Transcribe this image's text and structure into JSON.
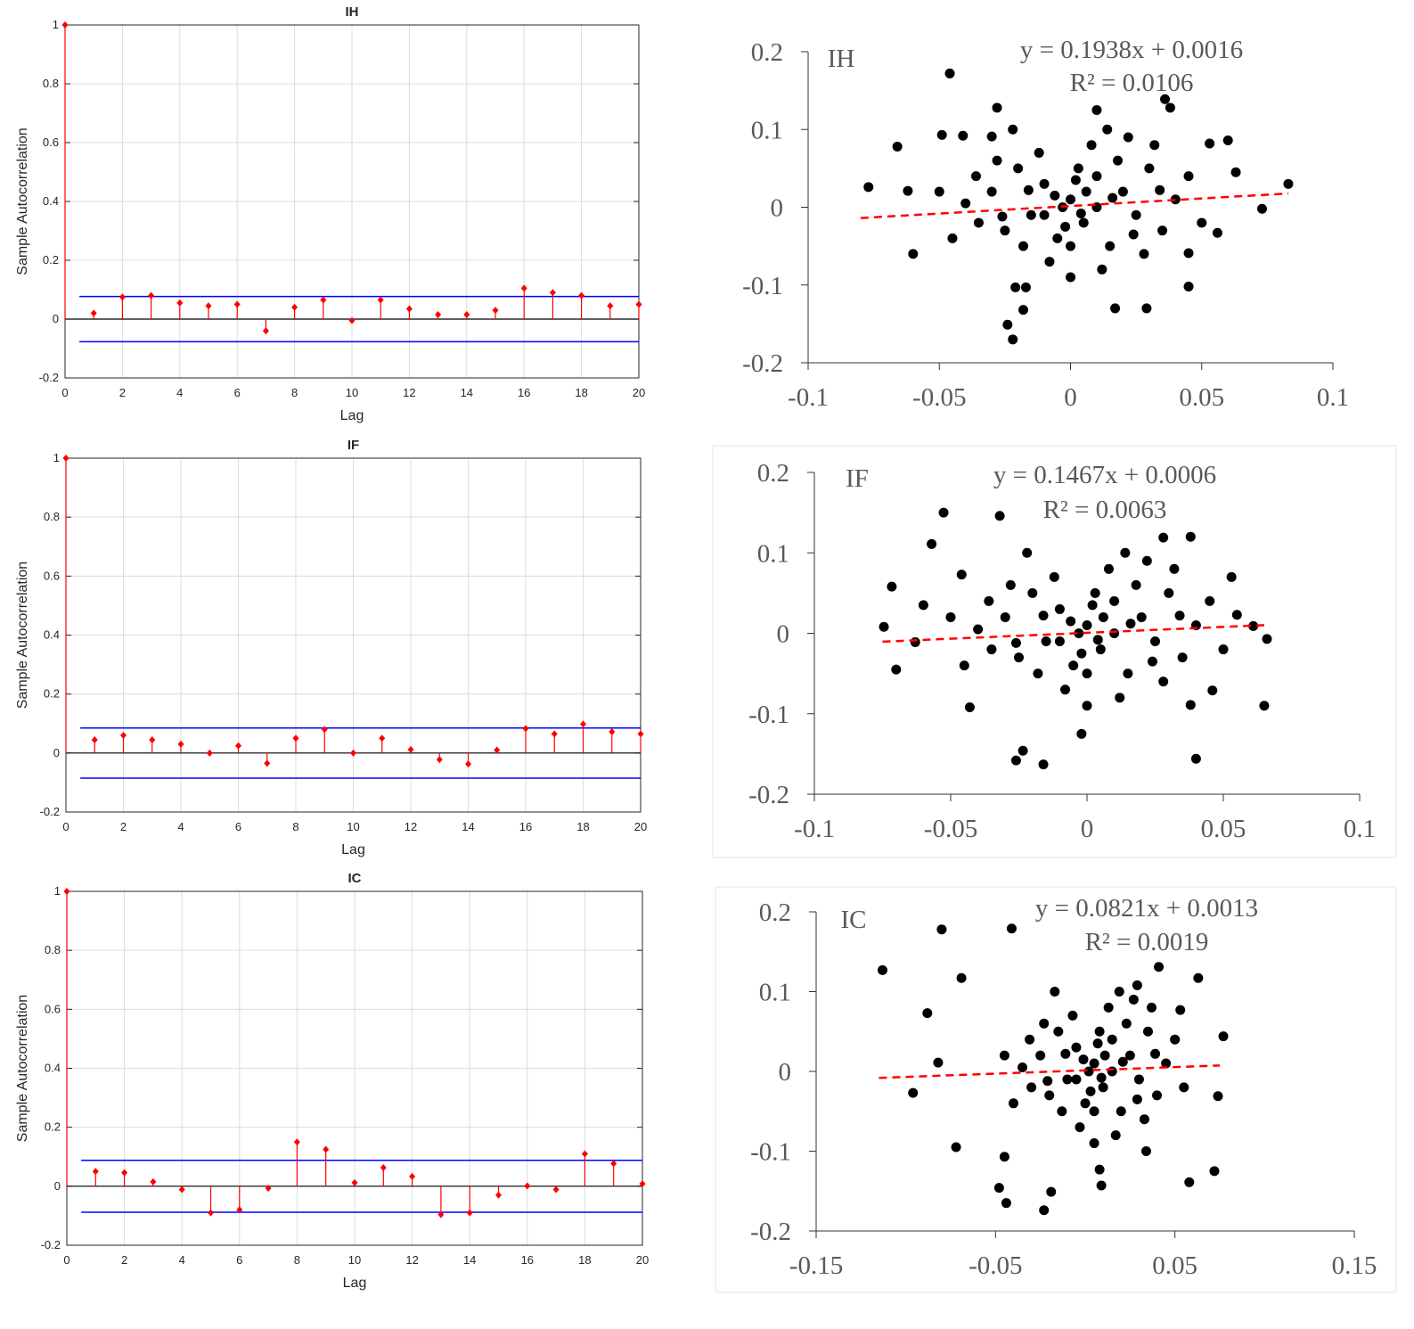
{
  "chart_data": [
    {
      "type": "stem",
      "title": "IH",
      "xlabel": "Lag",
      "ylabel": "Sample Autocorrelation",
      "xlim": [
        0,
        20
      ],
      "ylim": [
        -0.2,
        1
      ],
      "xticks": [
        "0",
        "2",
        "4",
        "6",
        "8",
        "10",
        "12",
        "14",
        "16",
        "18",
        "20"
      ],
      "yticks": [
        "-0.2",
        "0",
        "0.2",
        "0.4",
        "0.6",
        "0.8",
        "1"
      ],
      "grid": true,
      "lags": [
        0,
        1,
        2,
        3,
        4,
        5,
        6,
        7,
        8,
        9,
        10,
        11,
        12,
        13,
        14,
        15,
        16,
        17,
        18,
        19,
        20
      ],
      "values": [
        1,
        0.02,
        0.075,
        0.08,
        0.055,
        0.045,
        0.05,
        -0.04,
        0.04,
        0.065,
        -0.005,
        0.065,
        0.035,
        0.015,
        0.015,
        0.03,
        0.105,
        0.09,
        0.08,
        0.045,
        0.05
      ],
      "confidence_bound": 0.077,
      "stem_color": "#ff0000",
      "bound_color": "#0000ff"
    },
    {
      "type": "stem",
      "title": "IF",
      "xlabel": "Lag",
      "ylabel": "Sample Autocorrelation",
      "xlim": [
        0,
        20
      ],
      "ylim": [
        -0.2,
        1
      ],
      "xticks": [
        "0",
        "2",
        "4",
        "6",
        "8",
        "10",
        "12",
        "14",
        "16",
        "18",
        "20"
      ],
      "yticks": [
        "-0.2",
        "0",
        "0.2",
        "0.4",
        "0.6",
        "0.8",
        "1"
      ],
      "grid": true,
      "lags": [
        0,
        1,
        2,
        3,
        4,
        5,
        6,
        7,
        8,
        9,
        10,
        11,
        12,
        13,
        14,
        15,
        16,
        17,
        18,
        19,
        20
      ],
      "values": [
        1,
        0.045,
        0.06,
        0.045,
        0.03,
        0,
        0.025,
        -0.035,
        0.05,
        0.08,
        0,
        0.05,
        0.012,
        -0.022,
        -0.037,
        0.01,
        0.083,
        0.065,
        0.098,
        0.072,
        0.065
      ],
      "confidence_bound": 0.085,
      "stem_color": "#ff0000",
      "bound_color": "#0000ff"
    },
    {
      "type": "stem",
      "title": "IC",
      "xlabel": "Lag",
      "ylabel": "Sample Autocorrelation",
      "xlim": [
        0,
        20
      ],
      "ylim": [
        -0.2,
        1
      ],
      "xticks": [
        "0",
        "2",
        "4",
        "6",
        "8",
        "10",
        "12",
        "14",
        "16",
        "18",
        "20"
      ],
      "yticks": [
        "-0.2",
        "0",
        "0.2",
        "0.4",
        "0.6",
        "0.8",
        "1"
      ],
      "grid": true,
      "lags": [
        0,
        1,
        2,
        3,
        4,
        5,
        6,
        7,
        8,
        9,
        10,
        11,
        12,
        13,
        14,
        15,
        16,
        17,
        18,
        19,
        20
      ],
      "values": [
        1,
        0.05,
        0.046,
        0.015,
        -0.011,
        -0.09,
        -0.08,
        -0.007,
        0.15,
        0.125,
        0.012,
        0.063,
        0.033,
        -0.096,
        -0.09,
        -0.03,
        0.001,
        -0.011,
        0.11,
        0.077,
        0.008
      ],
      "confidence_bound": 0.088,
      "stem_color": "#ff0000",
      "bound_color": "#0000ff"
    },
    {
      "type": "scatter",
      "label": "IH",
      "equation": "y = 0.1938x + 0.0016",
      "r_squared": "R² = 0.0106",
      "trend": {
        "slope": 0.1938,
        "intercept": 0.0016,
        "x_range": [
          -0.08,
          0.083
        ],
        "color": "#ff0000",
        "style": "dashed"
      },
      "xlim": [
        -0.1,
        0.1
      ],
      "ylim": [
        -0.2,
        0.2
      ],
      "xticks": [
        {
          "v": -0.1,
          "t": "-0.1"
        },
        {
          "v": -0.05,
          "t": "-0.05"
        },
        {
          "v": 0,
          "t": "0"
        },
        {
          "v": 0.05,
          "t": "0.05"
        },
        {
          "v": 0.1,
          "t": "0.1"
        }
      ],
      "yticks": [
        {
          "v": 0.2,
          "t": "0.2"
        },
        {
          "v": 0.1,
          "t": "0.1"
        },
        {
          "v": 0,
          "t": "0"
        },
        {
          "v": -0.1,
          "t": "-0.1"
        },
        {
          "v": -0.2,
          "t": "-0.2"
        }
      ],
      "point_color": "#000000",
      "points": [
        [
          -0.046,
          0.172
        ],
        [
          -0.077,
          0.026
        ],
        [
          -0.066,
          0.078
        ],
        [
          -0.062,
          0.021
        ],
        [
          -0.06,
          -0.06
        ],
        [
          0.036,
          0.139
        ],
        [
          0.038,
          0.128
        ],
        [
          -0.028,
          0.128
        ],
        [
          0.083,
          0.03
        ],
        [
          0.073,
          -0.002
        ],
        [
          0.06,
          0.086
        ],
        [
          0.053,
          0.082
        ],
        [
          0.045,
          -0.102
        ],
        [
          0.029,
          -0.13
        ],
        [
          0.017,
          -0.13
        ],
        [
          -0.022,
          -0.17
        ],
        [
          -0.024,
          -0.151
        ],
        [
          -0.018,
          -0.132
        ],
        [
          -0.021,
          -0.103
        ],
        [
          -0.017,
          -0.103
        ],
        [
          0.01,
          0.125
        ],
        [
          -0.049,
          0.093
        ],
        [
          -0.041,
          0.092
        ],
        [
          -0.03,
          0.091
        ],
        [
          0.063,
          0.045
        ],
        [
          0.056,
          -0.033
        ],
        [
          0.045,
          -0.059
        ],
        [
          -0.03,
          0.02
        ],
        [
          -0.025,
          -0.03
        ],
        [
          -0.02,
          0.05
        ],
        [
          -0.015,
          -0.01
        ],
        [
          -0.01,
          0.03
        ],
        [
          -0.005,
          -0.04
        ],
        [
          0,
          0.01
        ],
        [
          0.005,
          -0.02
        ],
        [
          0.01,
          0.04
        ],
        [
          0.015,
          -0.05
        ],
        [
          0.02,
          0.02
        ],
        [
          0.025,
          -0.01
        ],
        [
          0.03,
          0.05
        ],
        [
          0.035,
          -0.03
        ],
        [
          -0.035,
          -0.02
        ],
        [
          -0.012,
          0.07
        ],
        [
          0.008,
          0.08
        ],
        [
          0.018,
          0.06
        ],
        [
          -0.008,
          -0.07
        ],
        [
          0.012,
          -0.08
        ],
        [
          0.028,
          -0.06
        ],
        [
          -0.028,
          0.06
        ],
        [
          0.04,
          0.01
        ],
        [
          -0.04,
          0.005
        ],
        [
          0,
          -0.05
        ],
        [
          0.003,
          0.05
        ],
        [
          -0.018,
          -0.05
        ],
        [
          0.022,
          0.09
        ],
        [
          -0.003,
          0
        ],
        [
          0.006,
          0.02
        ],
        [
          0.045,
          0.04
        ],
        [
          -0.045,
          -0.04
        ],
        [
          0.05,
          -0.02
        ],
        [
          -0.05,
          0.02
        ],
        [
          0.032,
          0.08
        ],
        [
          -0.022,
          0.1
        ],
        [
          0.014,
          0.1
        ],
        [
          0,
          -0.09
        ],
        [
          -0.01,
          -0.01
        ],
        [
          0.01,
          0
        ],
        [
          -0.006,
          0.015
        ],
        [
          0.004,
          -0.008
        ],
        [
          0.016,
          0.012
        ],
        [
          -0.016,
          0.022
        ],
        [
          0.024,
          -0.035
        ],
        [
          -0.026,
          -0.012
        ],
        [
          0.034,
          0.022
        ],
        [
          -0.036,
          0.04
        ],
        [
          0.002,
          0.035
        ],
        [
          -0.002,
          -0.025
        ]
      ]
    },
    {
      "type": "scatter",
      "label": "IF",
      "equation": "y = 0.1467x + 0.0006",
      "r_squared": "R² = 0.0063",
      "trend": {
        "slope": 0.1467,
        "intercept": 0.0006,
        "x_range": [
          -0.075,
          0.065
        ],
        "color": "#ff0000",
        "style": "dashed"
      },
      "xlim": [
        -0.1,
        0.1
      ],
      "ylim": [
        -0.2,
        0.2
      ],
      "xticks": [
        {
          "v": -0.1,
          "t": "-0.1"
        },
        {
          "v": -0.05,
          "t": "-0.05"
        },
        {
          "v": 0,
          "t": "0"
        },
        {
          "v": 0.05,
          "t": "0.05"
        },
        {
          "v": 0.1,
          "t": "0.1"
        }
      ],
      "yticks": [
        {
          "v": 0.2,
          "t": "0.2"
        },
        {
          "v": 0.1,
          "t": "0.1"
        },
        {
          "v": 0,
          "t": "0"
        },
        {
          "v": -0.1,
          "t": "-0.1"
        },
        {
          "v": -0.2,
          "t": "-0.2"
        }
      ],
      "point_color": "#000000",
      "points": [
        [
          -0.0526,
          0.15
        ],
        [
          -0.032,
          0.146
        ],
        [
          -0.057,
          0.111
        ],
        [
          -0.0716,
          0.058
        ],
        [
          -0.0745,
          0.008
        ],
        [
          -0.07,
          -0.045
        ],
        [
          0.038,
          0.12
        ],
        [
          0.028,
          0.119
        ],
        [
          0.066,
          -0.007
        ],
        [
          0.065,
          -0.09
        ],
        [
          0.061,
          0.009
        ],
        [
          0.04,
          -0.156
        ],
        [
          -0.026,
          -0.158
        ],
        [
          -0.016,
          -0.163
        ],
        [
          -0.0235,
          -0.146
        ],
        [
          -0.002,
          -0.125
        ],
        [
          -0.06,
          0.035
        ],
        [
          -0.046,
          0.073
        ],
        [
          0.053,
          0.07
        ],
        [
          0.046,
          -0.071
        ],
        [
          0.038,
          -0.089
        ],
        [
          -0.043,
          -0.092
        ],
        [
          -0.063,
          -0.011
        ],
        [
          0.055,
          0.023
        ],
        [
          -0.03,
          0.02
        ],
        [
          -0.025,
          -0.03
        ],
        [
          -0.02,
          0.05
        ],
        [
          -0.015,
          -0.01
        ],
        [
          -0.01,
          0.03
        ],
        [
          -0.005,
          -0.04
        ],
        [
          0,
          0.01
        ],
        [
          0.005,
          -0.02
        ],
        [
          0.01,
          0.04
        ],
        [
          0.015,
          -0.05
        ],
        [
          0.02,
          0.02
        ],
        [
          0.025,
          -0.01
        ],
        [
          0.03,
          0.05
        ],
        [
          0.035,
          -0.03
        ],
        [
          -0.035,
          -0.02
        ],
        [
          -0.012,
          0.07
        ],
        [
          0.008,
          0.08
        ],
        [
          0.018,
          0.06
        ],
        [
          -0.008,
          -0.07
        ],
        [
          0.012,
          -0.08
        ],
        [
          0.028,
          -0.06
        ],
        [
          -0.028,
          0.06
        ],
        [
          0.04,
          0.01
        ],
        [
          -0.04,
          0.005
        ],
        [
          0,
          -0.05
        ],
        [
          0.003,
          0.05
        ],
        [
          -0.018,
          -0.05
        ],
        [
          0.022,
          0.09
        ],
        [
          -0.003,
          0
        ],
        [
          0.006,
          0.02
        ],
        [
          0.045,
          0.04
        ],
        [
          -0.045,
          -0.04
        ],
        [
          0.05,
          -0.02
        ],
        [
          -0.05,
          0.02
        ],
        [
          0.032,
          0.08
        ],
        [
          -0.022,
          0.1
        ],
        [
          0.014,
          0.1
        ],
        [
          0,
          -0.09
        ],
        [
          -0.01,
          -0.01
        ],
        [
          0.01,
          0
        ],
        [
          -0.006,
          0.015
        ],
        [
          0.004,
          -0.008
        ],
        [
          0.016,
          0.012
        ],
        [
          -0.016,
          0.022
        ],
        [
          0.024,
          -0.035
        ],
        [
          -0.026,
          -0.012
        ],
        [
          0.034,
          0.022
        ],
        [
          -0.036,
          0.04
        ],
        [
          0.002,
          0.035
        ],
        [
          -0.002,
          -0.025
        ]
      ]
    },
    {
      "type": "scatter",
      "label": "IC",
      "equation": "y = 0.0821x + 0.0013",
      "r_squared": "R² = 0.0019",
      "trend": {
        "slope": 0.0821,
        "intercept": 0.0013,
        "x_range": [
          -0.115,
          0.075
        ],
        "color": "#ff0000",
        "style": "dashed"
      },
      "xlim": [
        -0.15,
        0.15
      ],
      "ylim": [
        -0.2,
        0.2
      ],
      "xticks": [
        {
          "v": -0.15,
          "t": "-0.15"
        },
        {
          "v": -0.05,
          "t": "-0.05"
        },
        {
          "v": 0.05,
          "t": "0.05"
        },
        {
          "v": 0.15,
          "t": "0.15"
        }
      ],
      "yticks": [
        {
          "v": 0.2,
          "t": "0.2"
        },
        {
          "v": 0.1,
          "t": "0.1"
        },
        {
          "v": 0,
          "t": "0"
        },
        {
          "v": -0.1,
          "t": "-0.1"
        },
        {
          "v": -0.2,
          "t": "-0.2"
        }
      ],
      "point_color": "#000000",
      "points": [
        [
          -0.113,
          0.127
        ],
        [
          -0.08,
          0.178
        ],
        [
          -0.041,
          0.179
        ],
        [
          -0.069,
          0.117
        ],
        [
          -0.088,
          0.073
        ],
        [
          -0.096,
          -0.027
        ],
        [
          -0.082,
          0.011
        ],
        [
          0.077,
          0.044
        ],
        [
          0.063,
          0.117
        ],
        [
          0.041,
          0.131
        ],
        [
          0.074,
          -0.031
        ],
        [
          0.072,
          -0.125
        ],
        [
          0.058,
          -0.139
        ],
        [
          -0.023,
          -0.174
        ],
        [
          -0.044,
          -0.165
        ],
        [
          -0.048,
          -0.146
        ],
        [
          0.009,
          -0.143
        ],
        [
          0.008,
          -0.123
        ],
        [
          0.034,
          -0.1
        ],
        [
          -0.072,
          -0.095
        ],
        [
          -0.045,
          -0.107
        ],
        [
          0.053,
          0.077
        ],
        [
          0.029,
          0.108
        ],
        [
          -0.019,
          -0.151
        ],
        [
          -0.025,
          0.02
        ],
        [
          -0.02,
          -0.03
        ],
        [
          -0.015,
          0.05
        ],
        [
          -0.01,
          -0.01
        ],
        [
          -0.005,
          0.03
        ],
        [
          0,
          -0.04
        ],
        [
          0.005,
          0.01
        ],
        [
          0.01,
          -0.02
        ],
        [
          0.015,
          0.04
        ],
        [
          0.02,
          -0.05
        ],
        [
          0.025,
          0.02
        ],
        [
          0.03,
          -0.01
        ],
        [
          0.035,
          0.05
        ],
        [
          0.04,
          -0.03
        ],
        [
          -0.03,
          -0.02
        ],
        [
          -0.007,
          0.07
        ],
        [
          0.013,
          0.08
        ],
        [
          0.023,
          0.06
        ],
        [
          -0.003,
          -0.07
        ],
        [
          0.017,
          -0.08
        ],
        [
          0.033,
          -0.06
        ],
        [
          -0.023,
          0.06
        ],
        [
          0.045,
          0.01
        ],
        [
          -0.035,
          0.005
        ],
        [
          0.005,
          -0.05
        ],
        [
          0.008,
          0.05
        ],
        [
          -0.013,
          -0.05
        ],
        [
          0.027,
          0.09
        ],
        [
          0.002,
          0
        ],
        [
          0.011,
          0.02
        ],
        [
          0.05,
          0.04
        ],
        [
          -0.04,
          -0.04
        ],
        [
          0.055,
          -0.02
        ],
        [
          -0.045,
          0.02
        ],
        [
          0.037,
          0.08
        ],
        [
          -0.017,
          0.1
        ],
        [
          0.019,
          0.1
        ],
        [
          0.005,
          -0.09
        ],
        [
          -0.005,
          -0.01
        ],
        [
          0.015,
          0
        ],
        [
          -0.001,
          0.015
        ],
        [
          0.009,
          -0.008
        ],
        [
          0.021,
          0.012
        ],
        [
          -0.011,
          0.022
        ],
        [
          0.029,
          -0.035
        ],
        [
          -0.021,
          -0.012
        ],
        [
          0.039,
          0.022
        ],
        [
          -0.031,
          0.04
        ],
        [
          0.007,
          0.035
        ],
        [
          0.003,
          -0.025
        ]
      ]
    }
  ]
}
